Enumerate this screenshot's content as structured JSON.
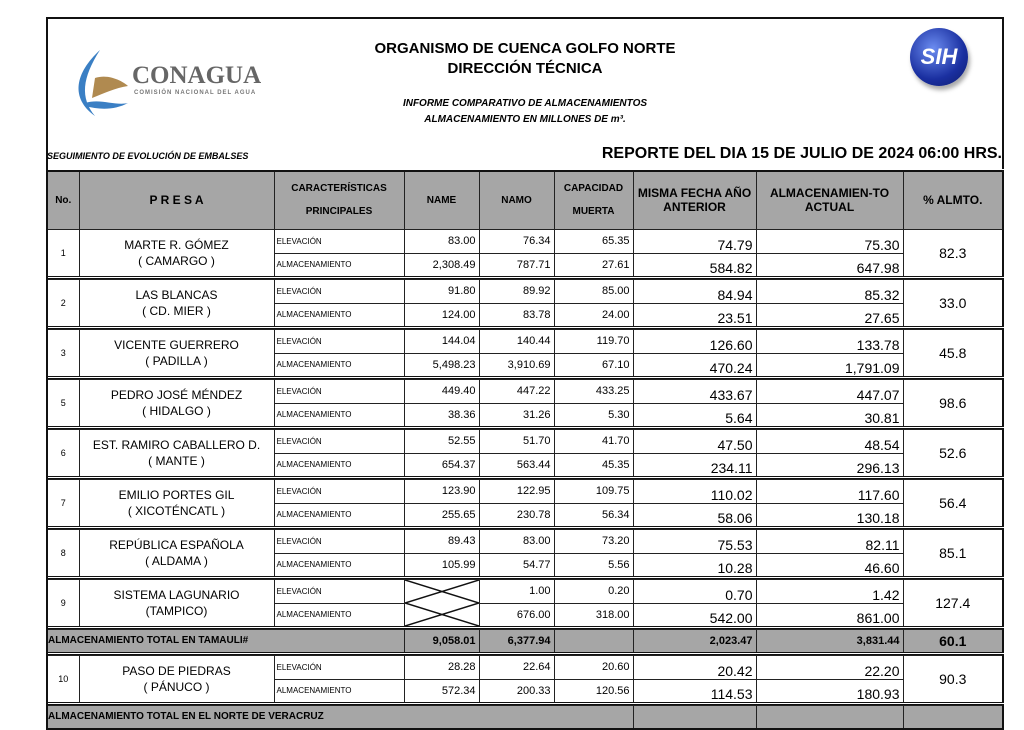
{
  "header": {
    "title1": "ORGANISMO DE CUENCA GOLFO NORTE",
    "title2": "DIRECCIÓN TÉCNICA",
    "sub1": "INFORME COMPARATIVO DE ALMACENAMIENTOS",
    "sub2": "ALMACENAMIENTO EN MILLONES DE m³.",
    "logo_name": "CONAGUA",
    "logo_sub": "COMISIÓN NACIONAL DEL AGUA",
    "sih": "SIH",
    "seguimiento": "SEGUIMIENTO DE EVOLUCIÓN DE EMBALSES",
    "reporte": "REPORTE DEL DIA 15 DE JULIO DE 2024 06:00 HRS."
  },
  "columns": {
    "no": "No.",
    "presa": "P R E S A",
    "car1": "CARACTERÍSTICAS",
    "car2": "PRINCIPALES",
    "name": "NAME",
    "namo": "NAMO",
    "cap1": "CAPACIDAD",
    "cap2": "MUERTA",
    "misma1": "MISMA FECHA AÑO",
    "misma2": "ANTERIOR",
    "act1": "ALMACENAMIEN-TO",
    "act2": "ACTUAL",
    "pct": "% ALMTO."
  },
  "labels": {
    "elev": "ELEVACIÓN",
    "alm": "ALMACENAMIENTO"
  },
  "dams": [
    {
      "no": "1",
      "name": "MARTE R. GÓMEZ",
      "loc": "( CAMARGO )",
      "elev": [
        "83.00",
        "76.34",
        "65.35",
        "74.79",
        "75.30"
      ],
      "alm": [
        "2,308.49",
        "787.71",
        "27.61",
        "584.82",
        "647.98"
      ],
      "pct": "82.3"
    },
    {
      "no": "2",
      "name": "LAS BLANCAS",
      "loc": "( CD. MIER )",
      "elev": [
        "91.80",
        "89.92",
        "85.00",
        "84.94",
        "85.32"
      ],
      "alm": [
        "124.00",
        "83.78",
        "24.00",
        "23.51",
        "27.65"
      ],
      "pct": "33.0"
    },
    {
      "no": "3",
      "name": "VICENTE GUERRERO",
      "loc": "( PADILLA )",
      "elev": [
        "144.04",
        "140.44",
        "119.70",
        "126.60",
        "133.78"
      ],
      "alm": [
        "5,498.23",
        "3,910.69",
        "67.10",
        "470.24",
        "1,791.09"
      ],
      "pct": "45.8"
    },
    {
      "no": "5",
      "name": "PEDRO JOSÉ MÉNDEZ",
      "loc": "( HIDALGO )",
      "elev": [
        "449.40",
        "447.22",
        "433.25",
        "433.67",
        "447.07"
      ],
      "alm": [
        "38.36",
        "31.26",
        "5.30",
        "5.64",
        "30.81"
      ],
      "pct": "98.6"
    },
    {
      "no": "6",
      "name": "EST. RAMIRO CABALLERO D.",
      "loc": "( MANTE )",
      "elev": [
        "52.55",
        "51.70",
        "41.70",
        "47.50",
        "48.54"
      ],
      "alm": [
        "654.37",
        "563.44",
        "45.35",
        "234.11",
        "296.13"
      ],
      "pct": "52.6"
    },
    {
      "no": "7",
      "name": "EMILIO PORTES GIL",
      "loc": "( XICOTÉNCATL )",
      "elev": [
        "123.90",
        "122.95",
        "109.75",
        "110.02",
        "117.60"
      ],
      "alm": [
        "255.65",
        "230.78",
        "56.34",
        "58.06",
        "130.18"
      ],
      "pct": "56.4"
    },
    {
      "no": "8",
      "name": "REPÚBLICA ESPAÑOLA",
      "loc": "( ALDAMA )",
      "elev": [
        "89.43",
        "83.00",
        "73.20",
        "75.53",
        "82.11"
      ],
      "alm": [
        "105.99",
        "54.77",
        "5.56",
        "10.28",
        "46.60"
      ],
      "pct": "85.1"
    },
    {
      "no": "9",
      "name": "SISTEMA LAGUNARIO",
      "loc": "(TAMPICO)",
      "elev": [
        "",
        "1.00",
        "0.20",
        "0.70",
        "1.42"
      ],
      "alm": [
        "",
        "676.00",
        "318.00",
        "542.00",
        "861.00"
      ],
      "pct": "127.4",
      "crossed": true
    }
  ],
  "total_tam": {
    "label": "ALMACENAMIENTO TOTAL EN TAMAULI#",
    "name": "9,058.01",
    "namo": "6,377.94",
    "misma": "2,023.47",
    "actual": "3,831.44",
    "pct": "60.1"
  },
  "dam_ver": {
    "no": "10",
    "name": "PASO DE PIEDRAS",
    "loc": "( PÁNUCO )",
    "elev": [
      "28.28",
      "22.64",
      "20.60",
      "20.42",
      "22.20"
    ],
    "alm": [
      "572.34",
      "200.33",
      "120.56",
      "114.53",
      "180.93"
    ],
    "pct": "90.3"
  },
  "total_ver": {
    "label": "ALMACENAMIENTO TOTAL EN EL NORTE DE VERACRUZ"
  }
}
